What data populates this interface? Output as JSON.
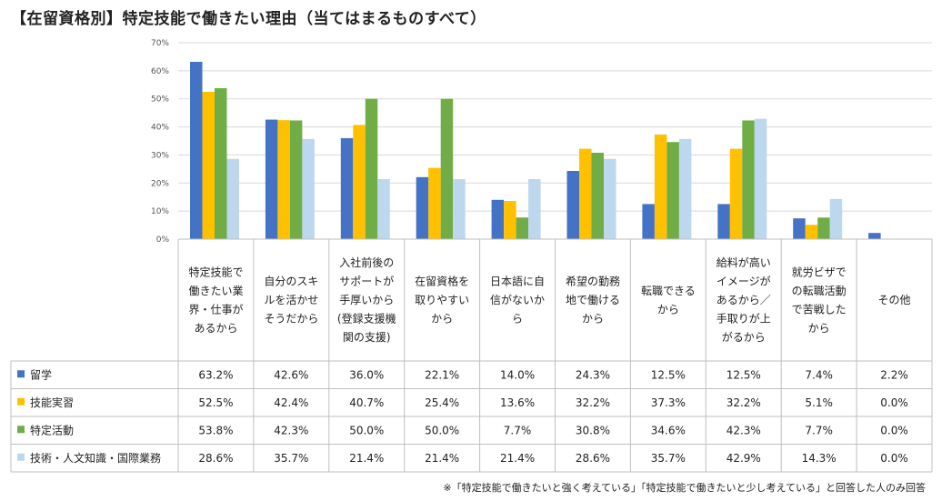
{
  "title": "【在留資格別】特定技能で働きたい理由（当てはまるものすべて）",
  "footnote": "※「特定技能で働きたいと強く考えている」「特定技能で働きたいと少し考えている」と回答した人のみ回答",
  "chart_data": {
    "type": "bar",
    "title": "【在留資格別】特定技能で働きたい理由（当てはまるものすべて）",
    "ylim": [
      0,
      70
    ],
    "yticks": [
      0,
      10,
      20,
      30,
      40,
      50,
      60,
      70
    ],
    "ytick_labels": [
      "0%",
      "10%",
      "20%",
      "30%",
      "40%",
      "50%",
      "60%",
      "70%"
    ],
    "grid": true,
    "categories": [
      [
        "特定技能で",
        "働きたい業",
        "界・仕事が",
        "あるから"
      ],
      [
        "自分のスキ",
        "ルを活かせ",
        "そうだから"
      ],
      [
        "入社前後の",
        "サポートが",
        "手厚いから",
        "(登録支援機",
        "関の支援)"
      ],
      [
        "在留資格を",
        "取りやすい",
        "から"
      ],
      [
        "日本語に自",
        "信がないか",
        "ら"
      ],
      [
        "希望の勤務",
        "地で働ける",
        "から"
      ],
      [
        "転職できる",
        "から"
      ],
      [
        "給料が高い",
        "イメージが",
        "あるから／",
        "手取りが上",
        "がるから"
      ],
      [
        "就労ビザで",
        "の転職活動",
        "で苦戦した",
        "から"
      ],
      [
        "その他"
      ]
    ],
    "series": [
      {
        "name": "留学",
        "color": "#4472c4",
        "values": [
          63.2,
          42.6,
          36.0,
          22.1,
          14.0,
          24.3,
          12.5,
          12.5,
          7.4,
          2.2
        ],
        "labels": [
          "63.2%",
          "42.6%",
          "36.0%",
          "22.1%",
          "14.0%",
          "24.3%",
          "12.5%",
          "12.5%",
          "7.4%",
          "2.2%"
        ]
      },
      {
        "name": "技能実習",
        "color": "#ffc000",
        "values": [
          52.5,
          42.4,
          40.7,
          25.4,
          13.6,
          32.2,
          37.3,
          32.2,
          5.1,
          0.0
        ],
        "labels": [
          "52.5%",
          "42.4%",
          "40.7%",
          "25.4%",
          "13.6%",
          "32.2%",
          "37.3%",
          "32.2%",
          "5.1%",
          "0.0%"
        ]
      },
      {
        "name": "特定活動",
        "color": "#70ad47",
        "values": [
          53.8,
          42.3,
          50.0,
          50.0,
          7.7,
          30.8,
          34.6,
          42.3,
          7.7,
          0.0
        ],
        "labels": [
          "53.8%",
          "42.3%",
          "50.0%",
          "50.0%",
          "7.7%",
          "30.8%",
          "34.6%",
          "42.3%",
          "7.7%",
          "0.0%"
        ]
      },
      {
        "name": "技術・人文知識・国際業務",
        "color": "#bdd7ee",
        "values": [
          28.6,
          35.7,
          21.4,
          21.4,
          21.4,
          28.6,
          35.7,
          42.9,
          14.3,
          0.0
        ],
        "labels": [
          "28.6%",
          "35.7%",
          "21.4%",
          "21.4%",
          "21.4%",
          "28.6%",
          "35.7%",
          "42.9%",
          "14.3%",
          "0.0%"
        ]
      }
    ]
  }
}
